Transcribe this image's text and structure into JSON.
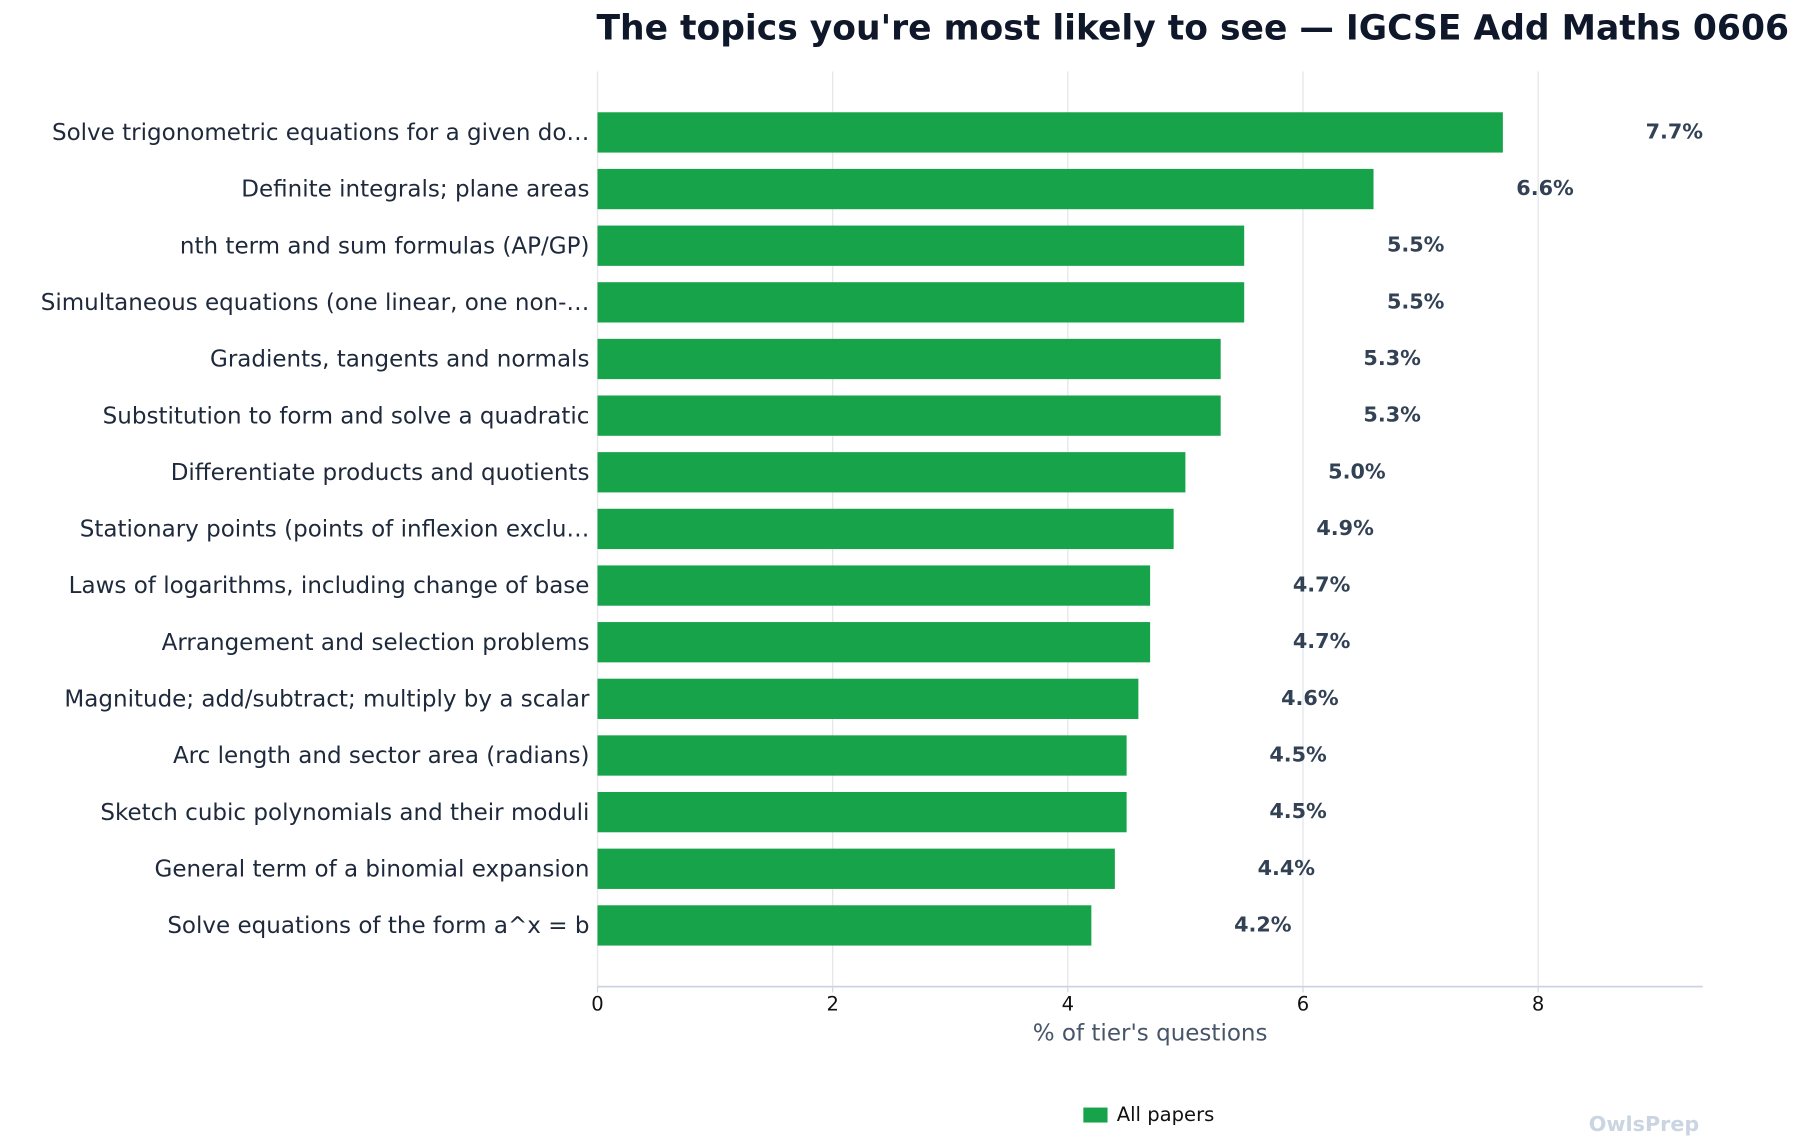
{
  "chart_data": {
    "type": "hbar",
    "title": "The topics you're most likely to see — IGCSE Add Maths 0606",
    "xlabel": "% of tier's questions",
    "categories": [
      "Solve trigonometric equations for a given do…",
      "Definite integrals; plane areas",
      "nth term and sum formulas (AP/GP)",
      "Simultaneous equations (one linear, one non-…",
      "Gradients, tangents and normals",
      "Substitution to form and solve a quadratic",
      "Differentiate products and quotients",
      "Stationary points (points of inflexion exclu…",
      "Laws of logarithms, including change of base",
      "Arrangement and selection problems",
      "Magnitude; add/subtract; multiply by a scalar",
      "Arc length and sector area (radians)",
      "Sketch cubic polynomials and their moduli",
      "General term of a binomial expansion",
      "Solve equations of the form a^x = b"
    ],
    "series": [
      {
        "name": "All papers",
        "color": "#17a34a",
        "values": [
          7.7,
          6.6,
          5.5,
          5.5,
          5.3,
          5.3,
          5.0,
          4.9,
          4.7,
          4.7,
          4.6,
          4.5,
          4.5,
          4.4,
          4.2
        ],
        "value_labels": [
          "7.7%",
          "6.6%",
          "5.5%",
          "5.5%",
          "5.3%",
          "5.3%",
          "5.0%",
          "4.9%",
          "4.7%",
          "4.7%",
          "4.6%",
          "4.5%",
          "4.5%",
          "4.4%",
          "4.2%"
        ]
      }
    ],
    "xlim": [
      0,
      9.4
    ],
    "xticks": [
      0,
      2,
      4,
      6,
      8
    ],
    "grid": true,
    "legend": "bottom",
    "watermark": "OwlsPrep"
  }
}
